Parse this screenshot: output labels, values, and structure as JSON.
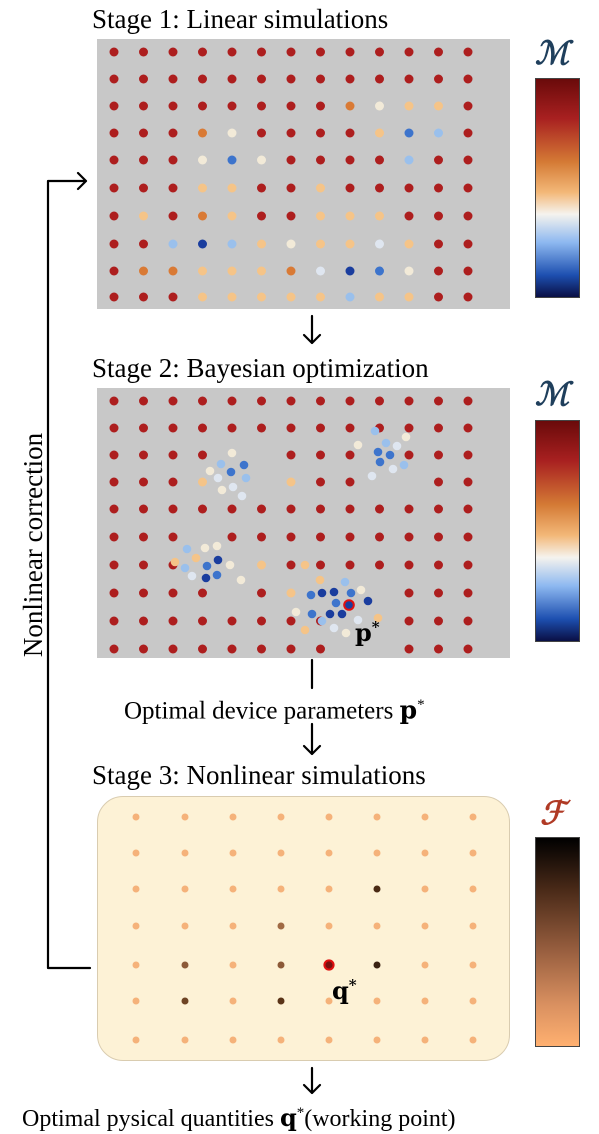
{
  "stage1": {
    "title": "Stage 1: Linear simulations",
    "colorbar_label": "ℳ"
  },
  "stage2": {
    "title": "Stage 2: Bayesian optimization",
    "colorbar_label": "ℳ",
    "point_label": "p",
    "point_sup": "*"
  },
  "stage3": {
    "title": "Stage 3: Nonlinear simulations",
    "colorbar_label": "ℱ",
    "point_label": "q",
    "point_sup": "*"
  },
  "optimal_device_text": "Optimal device parameters ",
  "optimal_device_symbol": "p",
  "optimal_device_sup": "*",
  "optimal_physical_text": "Optimal pysical quantities ",
  "optimal_physical_symbol": "q",
  "optimal_physical_sup": "*",
  "optimal_physical_suffix": "(working point)",
  "loop_label": "Nonlinear correction",
  "colors": {
    "grid_bg": "#c8c8c8",
    "stage3_bg": "#fdf2d6",
    "M_title": "#1f3f5c",
    "F_title": "#b03a25",
    "dot_red": "#ad1e1e",
    "highlight": "#e01010"
  },
  "colormaps": {
    "M": [
      "#0a0f45",
      "#1d4fb0",
      "#8db8f0",
      "#f5f3ee",
      "#f3b878",
      "#d47a35",
      "#a82020",
      "#6a0a0a"
    ],
    "F": [
      "#000000",
      "#4a2a18",
      "#9a6040",
      "#d99060",
      "#ffb070"
    ]
  }
}
